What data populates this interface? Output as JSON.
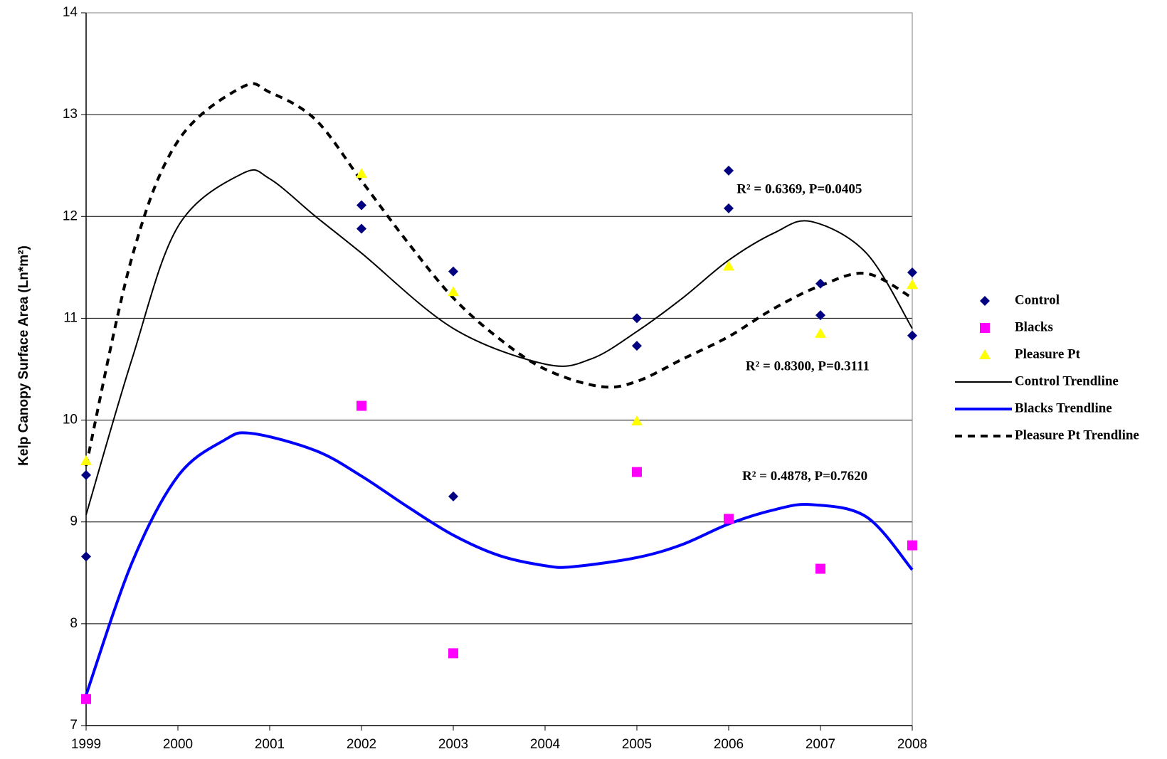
{
  "chart_data": {
    "type": "scatter",
    "y_label": "Kelp Canopy Surface Area (Ln*m²)",
    "xlim": [
      1999,
      2008
    ],
    "xticks": [
      1999,
      2000,
      2001,
      2002,
      2003,
      2004,
      2005,
      2006,
      2007,
      2008
    ],
    "ylim": [
      7,
      14
    ],
    "yticks": [
      7,
      8,
      9,
      10,
      11,
      12,
      13,
      14
    ],
    "grid": true,
    "legend": "right",
    "annotations": [
      "R² = 0.6369,  P=0.0405",
      "R² = 0.8300,  P=0.3111",
      "R² = 0.4878,  P=0.7620"
    ],
    "series": [
      {
        "name": "Control",
        "color": "#000080",
        "mode": "markers",
        "marker": "diamond",
        "x": [
          1999,
          1999,
          2002,
          2002,
          2003,
          2003,
          2005,
          2005,
          2006,
          2006,
          2007,
          2007,
          2008,
          2008
        ],
        "values": [
          9.46,
          8.66,
          12.11,
          11.88,
          11.46,
          9.25,
          11.0,
          10.73,
          12.45,
          12.08,
          11.34,
          11.03,
          11.45,
          10.83
        ]
      },
      {
        "name": "Blacks",
        "color": "#ff00ff",
        "mode": "markers",
        "marker": "square",
        "x": [
          1999,
          2002,
          2003,
          2005,
          2006,
          2007,
          2008
        ],
        "values": [
          7.26,
          10.14,
          7.71,
          9.49,
          9.03,
          8.54,
          8.77
        ]
      },
      {
        "name": "Pleasure Pt",
        "color": "#ffff00",
        "mode": "markers",
        "marker": "triangle",
        "x": [
          1999,
          2002,
          2003,
          2005,
          2006,
          2007,
          2008
        ],
        "values": [
          9.6,
          12.42,
          11.26,
          9.99,
          11.51,
          10.85,
          11.33
        ]
      },
      {
        "name": "Control Trendline",
        "color": "#000000",
        "mode": "line",
        "dash": false,
        "width": 2,
        "x": [
          1999,
          1999.5,
          2000,
          2000.7,
          2001,
          2001.5,
          2002,
          2003,
          2004,
          2004.5,
          2005,
          2005.5,
          2006,
          2006.5,
          2006.9,
          2007.5,
          2008
        ],
        "values": [
          9.07,
          10.6,
          11.9,
          12.42,
          12.37,
          12.0,
          11.64,
          10.9,
          10.55,
          10.6,
          10.87,
          11.2,
          11.57,
          11.84,
          11.95,
          11.64,
          10.9
        ]
      },
      {
        "name": "Blacks Trendline",
        "color": "#0000ff",
        "mode": "line",
        "dash": false,
        "width": 4,
        "x": [
          1999,
          1999.5,
          2000,
          2000.5,
          2000.8,
          2001.5,
          2002,
          2002.5,
          2003,
          2003.5,
          2004,
          2004.3,
          2005,
          2005.5,
          2006,
          2006.5,
          2006.9,
          2007.5,
          2008
        ],
        "values": [
          7.3,
          8.6,
          9.45,
          9.8,
          9.87,
          9.7,
          9.45,
          9.15,
          8.87,
          8.67,
          8.57,
          8.56,
          8.65,
          8.78,
          8.98,
          9.12,
          9.17,
          9.05,
          8.53
        ]
      },
      {
        "name": "Pleasure Pt Trendline",
        "color": "#000000",
        "mode": "line",
        "dash": true,
        "width": 4,
        "x": [
          1999,
          1999.5,
          2000,
          2000.7,
          2001,
          2001.5,
          2002,
          2002.5,
          2003,
          2003.5,
          2004,
          2004.6,
          2005,
          2005.5,
          2006,
          2006.5,
          2007,
          2007.5,
          2008
        ],
        "values": [
          9.55,
          11.6,
          12.74,
          13.27,
          13.22,
          12.95,
          12.35,
          11.75,
          11.2,
          10.8,
          10.5,
          10.33,
          10.38,
          10.6,
          10.82,
          11.1,
          11.32,
          11.44,
          11.2
        ]
      }
    ]
  }
}
